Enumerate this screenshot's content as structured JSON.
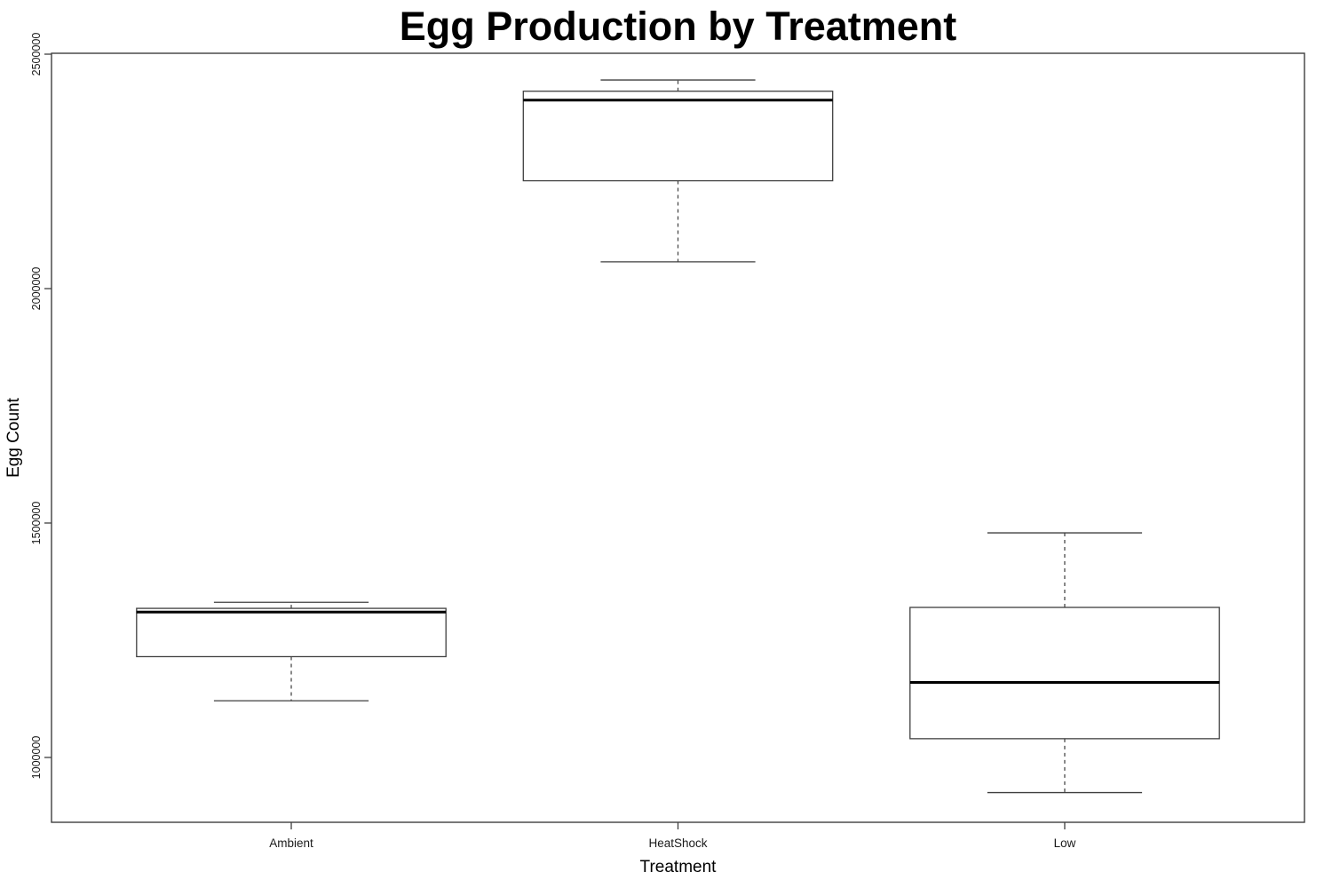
{
  "chart_data": {
    "type": "boxplot",
    "title": "Egg Production by Treatment",
    "xlabel": "Treatment",
    "ylabel": "Egg Count",
    "categories": [
      "Ambient",
      "HeatShock",
      "Low"
    ],
    "ylim": [
      861700,
      2501900
    ],
    "y_ticks": [
      {
        "value": 1000000,
        "label": "1000000"
      },
      {
        "value": 1500000,
        "label": "1500000"
      },
      {
        "value": 2000000,
        "label": "2000000"
      },
      {
        "value": 2500000,
        "label": "2500000"
      }
    ],
    "grid": false,
    "legend": "none",
    "series": [
      {
        "name": "Ambient",
        "whisker_low": 1121000,
        "q1": 1215000,
        "median": 1310000,
        "q3": 1318000,
        "whisker_high": 1331000
      },
      {
        "name": "HeatShock",
        "whisker_low": 2057000,
        "q1": 2230000,
        "median": 2402000,
        "q3": 2421000,
        "whisker_high": 2445000
      },
      {
        "name": "Low",
        "whisker_low": 925000,
        "q1": 1040000,
        "median": 1160000,
        "q3": 1320000,
        "whisker_high": 1479000
      }
    ],
    "colors": {
      "box_fill": "#ffffff",
      "line": "#3f3f3f",
      "whisker": "#4a4a4a",
      "median": "#000000",
      "text": "#1a1a1a"
    }
  }
}
